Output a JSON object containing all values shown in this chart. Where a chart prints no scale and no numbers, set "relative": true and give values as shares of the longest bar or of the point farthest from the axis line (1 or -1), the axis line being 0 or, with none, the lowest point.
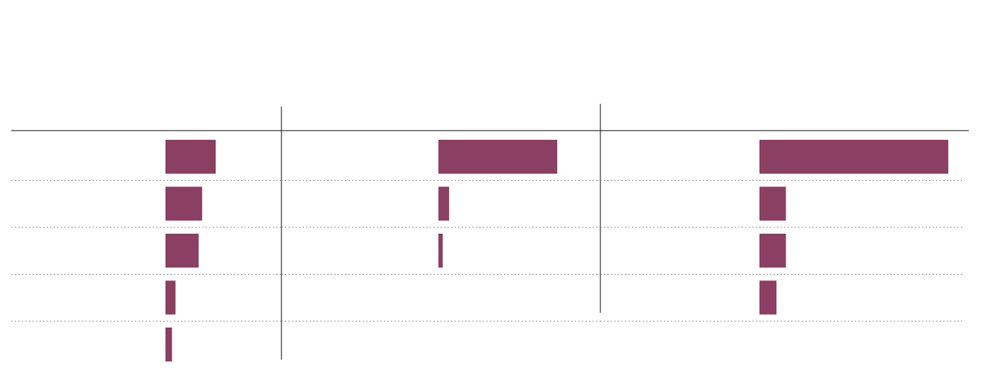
{
  "chart_data": [
    {
      "type": "bar",
      "orientation": "horizontal",
      "relative": true,
      "grid": "y",
      "categories": [
        null,
        null,
        null,
        null,
        null
      ],
      "values": [
        1,
        0.73,
        0.66,
        0.2,
        0.13
      ],
      "color": "#8b3f62"
    },
    {
      "type": "bar",
      "orientation": "horizontal",
      "relative": true,
      "grid": "y",
      "categories": [
        null,
        null,
        null
      ],
      "values": [
        1,
        0.09,
        0.036
      ],
      "color": "#8b3f62"
    },
    {
      "type": "bar",
      "orientation": "horizontal",
      "relative": true,
      "grid": "y",
      "categories": [
        null,
        null,
        null,
        null
      ],
      "values": [
        1,
        0.14,
        0.14,
        0.09
      ],
      "color": "#8b3f62"
    }
  ]
}
